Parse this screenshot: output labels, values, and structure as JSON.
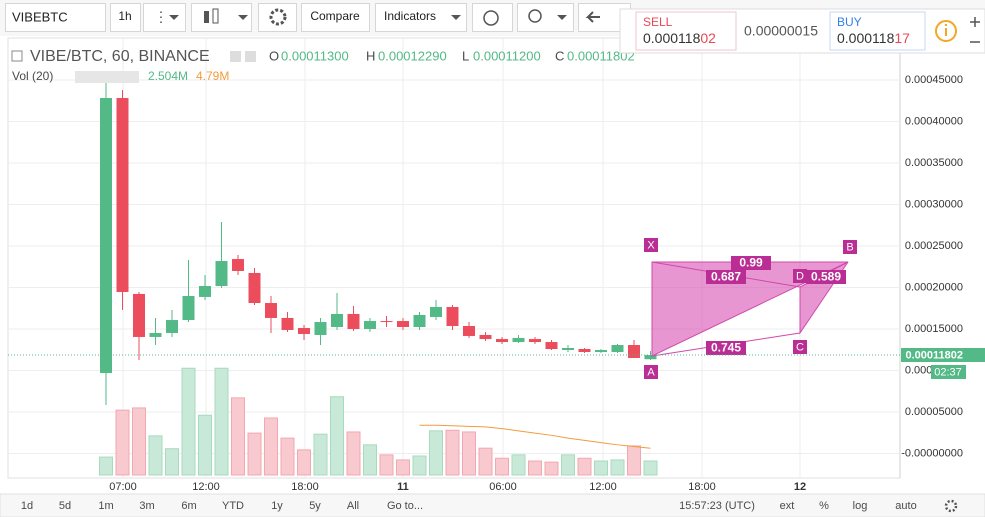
{
  "toolbar": {
    "symbol": "VIBEBTC",
    "interval": "1h",
    "compare": "Compare",
    "indicators": "Indicators"
  },
  "trade": {
    "sell_label": "SELL",
    "sell_price_main": "0.000118",
    "sell_price_tail": "02",
    "spread": "0.00000015",
    "buy_label": "BUY",
    "buy_price_main": "0.000118",
    "buy_price_tail": "17"
  },
  "legend": {
    "title": "VIBE/BTC, 60, BINANCE",
    "o_label": "O",
    "o": "0.00011300",
    "h_label": "H",
    "h": "0.00012290",
    "l_label": "L",
    "l": "0.00011200",
    "c_label": "C",
    "c": "0.00011802",
    "vol_title": "Vol (20)",
    "vol": "2.504M",
    "vol_ma": "4.79M"
  },
  "price_axis": {
    "ticks": [
      "0.00045000",
      "0.00040000",
      "0.00035000",
      "0.00030000",
      "0.00025000",
      "0.00020000",
      "0.00015000",
      "0.00010000",
      "0.00005000",
      "-0.00000000"
    ],
    "last_price": "0.00011802",
    "countdown": "02:37"
  },
  "time_axis": [
    "07:00",
    "12:00",
    "18:00",
    "11",
    "06:00",
    "12:00",
    "18:00",
    "12"
  ],
  "candles": [
    {
      "open": 9.64e-05,
      "high": 0.0004518,
      "low": 5.78e-05,
      "close": 0.0004277,
      "volume": 3.2
    },
    {
      "open": 0.0004277,
      "high": 0.0004373,
      "low": 0.0001723,
      "close": 0.000194,
      "volume": 11.6
    },
    {
      "open": 0.0001916,
      "high": 0.000194,
      "low": 0.000112,
      "close": 0.0001398,
      "volume": 12.0
    },
    {
      "open": 0.0001398,
      "high": 0.0001627,
      "low": 0.0001301,
      "close": 0.0001446,
      "volume": 7.0
    },
    {
      "open": 0.0001446,
      "high": 0.0001723,
      "low": 0.0001398,
      "close": 0.0001602,
      "volume": 4.7
    },
    {
      "open": 0.0001602,
      "high": 0.0002325,
      "low": 0.0001578,
      "close": 0.0001892,
      "volume": 19.1
    },
    {
      "open": 0.000188,
      "high": 0.0002145,
      "low": 0.0001843,
      "close": 0.0002012,
      "volume": 10.7
    },
    {
      "open": 0.0002012,
      "high": 0.0002783,
      "low": 0.0001988,
      "close": 0.0002313,
      "volume": 19.1
    },
    {
      "open": 0.0002337,
      "high": 0.0002386,
      "low": 0.0002145,
      "close": 0.0002193,
      "volume": 13.8
    },
    {
      "open": 0.0002169,
      "high": 0.0002229,
      "low": 0.0001783,
      "close": 0.0001807,
      "volume": 7.5
    },
    {
      "open": 0.0001807,
      "high": 0.0001892,
      "low": 0.0001446,
      "close": 0.0001627,
      "volume": 10.2
    },
    {
      "open": 0.0001627,
      "high": 0.0001699,
      "low": 0.0001458,
      "close": 0.0001482,
      "volume": 6.6
    },
    {
      "open": 0.0001506,
      "high": 0.0001542,
      "low": 0.0001361,
      "close": 0.0001434,
      "volume": 4.5
    },
    {
      "open": 0.0001422,
      "high": 0.0001627,
      "low": 0.0001301,
      "close": 0.0001578,
      "volume": 7.3
    },
    {
      "open": 0.0001518,
      "high": 0.0001928,
      "low": 0.0001482,
      "close": 0.0001675,
      "volume": 14.0
    },
    {
      "open": 0.0001675,
      "high": 0.0001771,
      "low": 0.000147,
      "close": 0.0001494,
      "volume": 7.7
    },
    {
      "open": 0.0001494,
      "high": 0.0001627,
      "low": 0.0001458,
      "close": 0.000159,
      "volume": 5.4
    },
    {
      "open": 0.000159,
      "high": 0.0001651,
      "low": 0.0001518,
      "close": 0.0001578,
      "volume": 3.6
    },
    {
      "open": 0.000159,
      "high": 0.0001627,
      "low": 0.0001482,
      "close": 0.0001518,
      "volume": 2.7
    },
    {
      "open": 0.0001518,
      "high": 0.0001699,
      "low": 0.0001482,
      "close": 0.0001663,
      "volume": 3.4
    },
    {
      "open": 0.0001639,
      "high": 0.0001843,
      "low": 0.0001602,
      "close": 0.0001759,
      "volume": 7.9
    },
    {
      "open": 0.0001759,
      "high": 0.0001783,
      "low": 0.0001482,
      "close": 0.000153,
      "volume": 8.0
    },
    {
      "open": 0.000153,
      "high": 0.0001578,
      "low": 0.0001386,
      "close": 0.000141,
      "volume": 7.7
    },
    {
      "open": 0.0001422,
      "high": 0.0001458,
      "low": 0.0001349,
      "close": 0.0001373,
      "volume": 4.8
    },
    {
      "open": 0.0001373,
      "high": 0.0001398,
      "low": 0.0001313,
      "close": 0.0001337,
      "volume": 3.0
    },
    {
      "open": 0.0001337,
      "high": 0.0001422,
      "low": 0.0001325,
      "close": 0.0001386,
      "volume": 3.6
    },
    {
      "open": 0.0001373,
      "high": 0.0001398,
      "low": 0.0001313,
      "close": 0.0001337,
      "volume": 2.5
    },
    {
      "open": 0.0001337,
      "high": 0.0001361,
      "low": 0.0001241,
      "close": 0.0001253,
      "volume": 2.3
    },
    {
      "open": 0.0001241,
      "high": 0.0001301,
      "low": 0.0001217,
      "close": 0.0001265,
      "volume": 3.6
    },
    {
      "open": 0.0001253,
      "high": 0.0001265,
      "low": 0.0001205,
      "close": 0.0001217,
      "volume": 3.0
    },
    {
      "open": 0.0001217,
      "high": 0.0001253,
      "low": 0.0001205,
      "close": 0.0001241,
      "volume": 2.5
    },
    {
      "open": 0.0001217,
      "high": 0.0001313,
      "low": 0.0001205,
      "close": 0.0001301,
      "volume": 2.7
    },
    {
      "open": 0.0001301,
      "high": 0.0001361,
      "low": 0.0001145,
      "close": 0.0001145,
      "volume": 5.2
    },
    {
      "open": 0.000113,
      "high": 0.0001229,
      "low": 0.000112,
      "close": 0.00011802,
      "volume": 2.504
    }
  ],
  "volume_ma": [
    null,
    null,
    null,
    null,
    null,
    null,
    null,
    null,
    null,
    null,
    null,
    null,
    null,
    null,
    null,
    null,
    null,
    null,
    null,
    8.9,
    8.9,
    8.8,
    8.7,
    8.6,
    8.3,
    7.9,
    7.5,
    7.1,
    6.6,
    6.2,
    5.8,
    5.4,
    5.1,
    4.79
  ],
  "pattern": {
    "points": [
      "X",
      "A",
      "B",
      "C",
      "D"
    ],
    "ratios": [
      "0.99",
      "0.687",
      "0.589",
      "0.745"
    ]
  },
  "bottom_bar": {
    "ranges": [
      "1d",
      "5d",
      "1m",
      "3m",
      "6m",
      "YTD",
      "1y",
      "5y",
      "All"
    ],
    "goto": "Go to...",
    "clock": "15:57:23 (UTC)",
    "options": [
      "ext",
      "%",
      "log",
      "auto"
    ]
  }
}
